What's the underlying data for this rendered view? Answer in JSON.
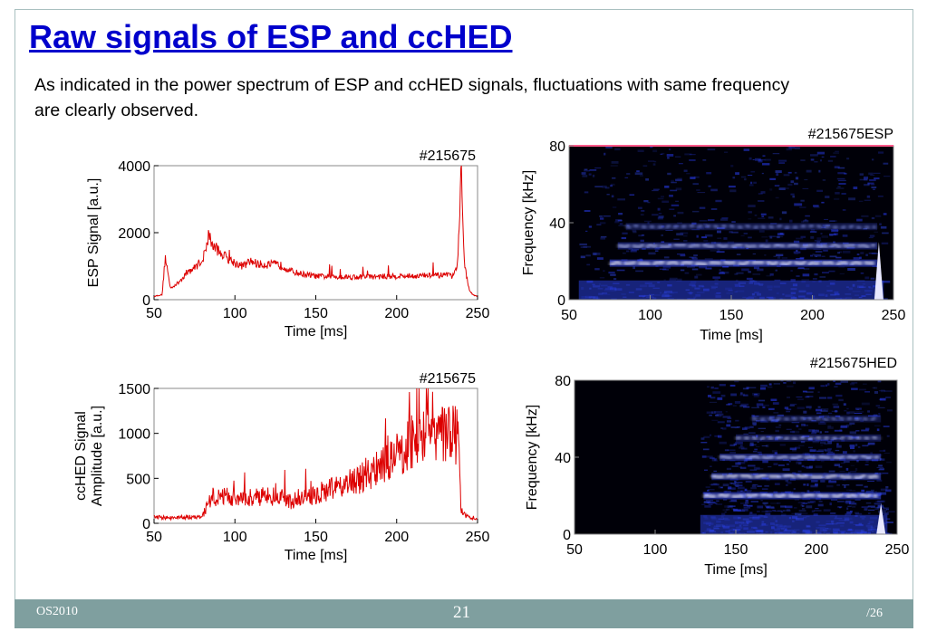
{
  "slide": {
    "title": "Raw signals of ESP and ccHED",
    "text": "As indicated in the power spectrum of ESP and ccHED signals, fluctuations with same frequency are clearly observed."
  },
  "footer": {
    "left": "OS2010",
    "page": "21",
    "total": "/26"
  },
  "chart_data": [
    {
      "type": "line",
      "title": "#215675",
      "xlabel": "Time  [ms]",
      "ylabel": "ESP Signal  [a.u.]",
      "xlim": [
        50,
        250
      ],
      "ylim": [
        0,
        4000
      ],
      "xticks": [
        "50",
        "100",
        "150",
        "200",
        "250"
      ],
      "yticks": [
        "0",
        "2000",
        "4000"
      ],
      "color": "#dd0000",
      "x": [
        50,
        55,
        57,
        60,
        65,
        70,
        75,
        80,
        82,
        84,
        85,
        87,
        90,
        95,
        100,
        105,
        110,
        115,
        120,
        125,
        130,
        135,
        140,
        150,
        160,
        170,
        180,
        190,
        200,
        210,
        220,
        230,
        235,
        237,
        238,
        239,
        240,
        241,
        242,
        245,
        248,
        250
      ],
      "y": [
        100,
        150,
        1300,
        350,
        500,
        800,
        950,
        1200,
        1500,
        2050,
        1700,
        1600,
        1450,
        1250,
        1100,
        1000,
        1150,
        1050,
        1050,
        1050,
        1000,
        850,
        780,
        700,
        690,
        680,
        680,
        690,
        700,
        710,
        720,
        730,
        700,
        900,
        1500,
        2800,
        4000,
        2500,
        1000,
        250,
        120,
        100
      ]
    },
    {
      "type": "heatmap",
      "title": "#215675ESP",
      "xlabel": "Time [ms]",
      "ylabel": "Frequency  [kHz]",
      "xlim": [
        50,
        250
      ],
      "ylim": [
        0,
        80
      ],
      "xticks": [
        "50",
        "100",
        "150",
        "200",
        "250"
      ],
      "yticks": [
        "0",
        "40",
        "80"
      ],
      "bands": [
        {
          "name": "f1",
          "freq_khz": 19,
          "t_start": 75,
          "t_end": 240,
          "intensity": 1.0
        },
        {
          "name": "f2",
          "freq_khz": 28,
          "t_start": 80,
          "t_end": 240,
          "intensity": 0.7
        },
        {
          "name": "f3",
          "freq_khz": 38,
          "t_start": 85,
          "t_end": 240,
          "intensity": 0.45
        }
      ]
    },
    {
      "type": "line",
      "title": "#215675",
      "xlabel": "Time   [ms]",
      "ylabel": "ccHED Signal  Amplitude  [a.u.]",
      "ylabel_lines": [
        "ccHED Signal",
        "Amplitude  [a.u.]"
      ],
      "xlim": [
        50,
        250
      ],
      "ylim": [
        0,
        1500
      ],
      "xticks": [
        "50",
        "100",
        "150",
        "200",
        "250"
      ],
      "yticks": [
        "0",
        "500",
        "1000",
        "1500"
      ],
      "color": "#dd0000",
      "x": [
        50,
        60,
        70,
        80,
        83,
        85,
        90,
        100,
        110,
        120,
        130,
        135,
        140,
        150,
        160,
        170,
        180,
        190,
        200,
        210,
        220,
        230,
        235,
        238,
        240,
        245,
        250
      ],
      "y": [
        70,
        60,
        70,
        80,
        200,
        280,
        300,
        290,
        290,
        300,
        290,
        240,
        280,
        320,
        380,
        440,
        520,
        620,
        760,
        900,
        980,
        1000,
        1050,
        900,
        120,
        60,
        50
      ]
    },
    {
      "type": "heatmap",
      "title": "#215675HED",
      "xlabel": "Time [ms]",
      "ylabel": "Frequency  [kHz]",
      "xlim": [
        50,
        250
      ],
      "ylim": [
        0,
        80
      ],
      "xticks": [
        "50",
        "100",
        "150",
        "200",
        "250"
      ],
      "yticks": [
        "0",
        "40",
        "80"
      ],
      "bands": [
        {
          "name": "f1",
          "freq_khz": 20,
          "t_start": 130,
          "t_end": 240,
          "intensity": 1.0
        },
        {
          "name": "f2",
          "freq_khz": 30,
          "t_start": 135,
          "t_end": 240,
          "intensity": 0.85
        },
        {
          "name": "f3",
          "freq_khz": 40,
          "t_start": 140,
          "t_end": 240,
          "intensity": 0.75
        },
        {
          "name": "f4",
          "freq_khz": 50,
          "t_start": 150,
          "t_end": 240,
          "intensity": 0.55
        },
        {
          "name": "f5",
          "freq_khz": 60,
          "t_start": 160,
          "t_end": 240,
          "intensity": 0.4
        }
      ]
    }
  ]
}
